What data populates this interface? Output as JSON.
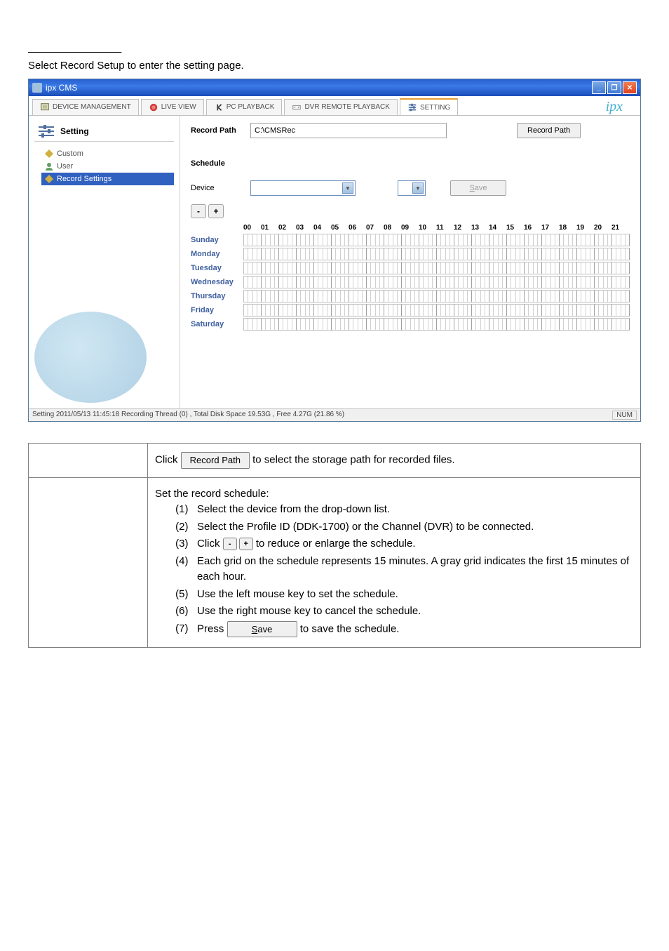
{
  "intro": {
    "text": "Select Record Setup to enter the setting page."
  },
  "window": {
    "title": "ipx CMS"
  },
  "tabs": {
    "device_management": "DEVICE MANAGEMENT",
    "live_view": "LIVE VIEW",
    "pc_playback": "PC PLAYBACK",
    "dvr_playback": "DVR REMOTE PLAYBACK",
    "setting": "SETTING"
  },
  "logo": "ipx",
  "sidebar": {
    "title": "Setting",
    "items": {
      "custom": "Custom",
      "user": "User",
      "record_settings": "Record Settings"
    }
  },
  "record": {
    "path_label": "Record Path",
    "path_value": "C:\\CMSRec",
    "path_button": "Record Path"
  },
  "schedule": {
    "label": "Schedule",
    "device_label": "Device",
    "save_button": "Save",
    "zoom_minus": "-",
    "zoom_plus": "+",
    "hours": [
      "00",
      "01",
      "02",
      "03",
      "04",
      "05",
      "06",
      "07",
      "08",
      "09",
      "10",
      "11",
      "12",
      "13",
      "14",
      "15",
      "16",
      "17",
      "18",
      "19",
      "20",
      "21"
    ],
    "days": [
      "Sunday",
      "Monday",
      "Tuesday",
      "Wednesday",
      "Thursday",
      "Friday",
      "Saturday"
    ]
  },
  "status": {
    "text": "Setting  2011/05/13 11:45:18  Recording Thread (0) , Total Disk Space 19.53G , Free 4.27G (21.86 %)",
    "num": "NUM"
  },
  "instructions": {
    "row1_click": "Click ",
    "row1_btn": "Record Path",
    "row1_end": " to select the storage path for recorded files.",
    "row2_title": "Set the record schedule:",
    "row2_i1": "Select the device from the drop-down list.",
    "row2_i2": "Select the Profile ID (DDK-1700) or the Channel (DVR) to be connected.",
    "row2_i3a": "Click ",
    "row2_i3b": " to reduce or enlarge the schedule.",
    "row2_i4": "Each grid on the schedule represents 15 minutes. A gray grid indicates the first 15 minutes of each hour.",
    "row2_i5": "Use the left mouse key to set the schedule.",
    "row2_i6": "Use the right mouse key to cancel the schedule.",
    "row2_i7a": "Press ",
    "row2_i7btn": "Save",
    "row2_i7b": " to save the schedule."
  },
  "colors": {
    "titlebar": "#2861d0",
    "selected": "#3060c0",
    "day_label": "#4060a0"
  }
}
